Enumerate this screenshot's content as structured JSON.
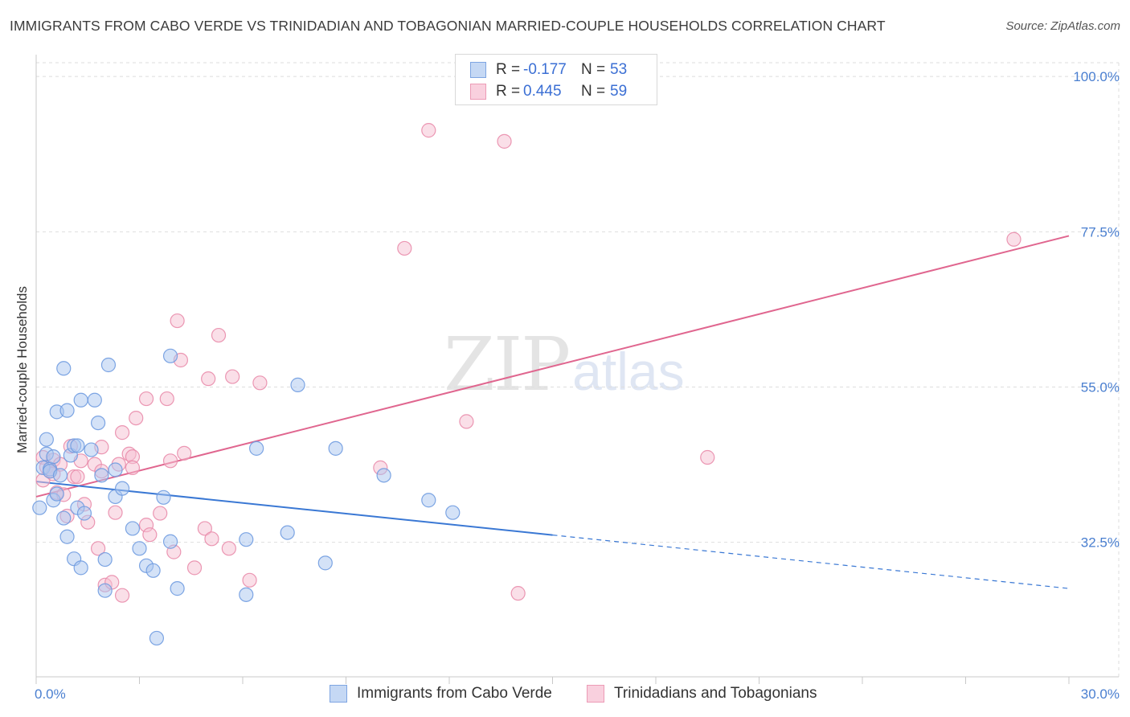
{
  "title": "IMMIGRANTS FROM CABO VERDE VS TRINIDADIAN AND TOBAGONIAN MARRIED-COUPLE HOUSEHOLDS CORRELATION CHART",
  "source": "Source: ZipAtlas.com",
  "watermark": {
    "zip": "ZIP",
    "atlas": "atlas"
  },
  "legend": {
    "rows": [
      {
        "r_label": "R =",
        "r_value": "-0.177",
        "n_label": "N =",
        "n_value": "53"
      },
      {
        "r_label": "R =",
        "r_value": "0.445",
        "n_label": "N =",
        "n_value": "59"
      }
    ]
  },
  "bottom_legend": [
    "Immigrants from Cabo Verde",
    "Trinidadians and Tobagonians"
  ],
  "colors": {
    "blue_fill": "#a9c6ef",
    "blue_stroke": "#6f9be0",
    "blue_line": "#3a78d4",
    "pink_fill": "#f6bfd2",
    "pink_stroke": "#e98cab",
    "pink_line": "#e0668f",
    "tick_label": "#4a7fd0",
    "grid": "#dedede"
  },
  "chart_data": {
    "type": "scatter",
    "title": "IMMIGRANTS FROM CABO VERDE VS TRINIDADIAN AND TOBAGONIAN MARRIED-COUPLE HOUSEHOLDS CORRELATION CHART",
    "xlabel": "",
    "ylabel": "Married-couple Households",
    "xlim": [
      0,
      30
    ],
    "ylim": [
      13,
      102
    ],
    "x_tick_labels": [
      "0.0%",
      "30.0%"
    ],
    "y_ticks": [
      32.5,
      55.0,
      77.5,
      100.0
    ],
    "y_tick_labels": [
      "32.5%",
      "55.0%",
      "77.5%",
      "100.0%"
    ],
    "grid": true,
    "series": [
      {
        "name": "Immigrants from Cabo Verde",
        "color": "blue",
        "points": [
          [
            0.1,
            37.5
          ],
          [
            0.2,
            43.3
          ],
          [
            0.3,
            45.3
          ],
          [
            0.3,
            47.4
          ],
          [
            0.4,
            43.1
          ],
          [
            0.4,
            42.8
          ],
          [
            0.5,
            38.6
          ],
          [
            0.5,
            44.9
          ],
          [
            0.6,
            39.5
          ],
          [
            0.6,
            51.4
          ],
          [
            0.7,
            42.2
          ],
          [
            0.8,
            57.7
          ],
          [
            0.8,
            36.0
          ],
          [
            0.9,
            33.3
          ],
          [
            0.9,
            51.6
          ],
          [
            1.0,
            45.1
          ],
          [
            1.1,
            46.5
          ],
          [
            1.1,
            30.1
          ],
          [
            1.2,
            37.5
          ],
          [
            1.2,
            46.5
          ],
          [
            1.3,
            28.8
          ],
          [
            1.3,
            53.1
          ],
          [
            1.4,
            36.7
          ],
          [
            1.6,
            45.9
          ],
          [
            1.7,
            53.1
          ],
          [
            1.8,
            49.8
          ],
          [
            1.9,
            42.2
          ],
          [
            2.0,
            25.5
          ],
          [
            2.0,
            30.0
          ],
          [
            2.1,
            58.2
          ],
          [
            2.3,
            39.1
          ],
          [
            2.3,
            43.0
          ],
          [
            2.5,
            40.3
          ],
          [
            2.8,
            34.5
          ],
          [
            3.0,
            31.6
          ],
          [
            3.2,
            29.1
          ],
          [
            3.4,
            28.4
          ],
          [
            3.5,
            18.6
          ],
          [
            3.7,
            39.0
          ],
          [
            3.9,
            59.5
          ],
          [
            3.9,
            32.6
          ],
          [
            4.1,
            25.8
          ],
          [
            6.1,
            24.9
          ],
          [
            6.1,
            32.9
          ],
          [
            6.4,
            46.1
          ],
          [
            7.3,
            33.9
          ],
          [
            7.6,
            55.3
          ],
          [
            8.4,
            29.5
          ],
          [
            8.7,
            46.1
          ],
          [
            10.1,
            42.2
          ],
          [
            11.4,
            38.6
          ],
          [
            12.1,
            36.8
          ]
        ]
      },
      {
        "name": "Trinidadians and Tobagonians",
        "color": "pink",
        "points": [
          [
            0.2,
            44.8
          ],
          [
            0.2,
            41.5
          ],
          [
            0.3,
            43.4
          ],
          [
            0.4,
            42.8
          ],
          [
            0.5,
            42.4
          ],
          [
            0.5,
            44.4
          ],
          [
            0.6,
            39.7
          ],
          [
            0.7,
            43.8
          ],
          [
            0.8,
            39.4
          ],
          [
            0.9,
            36.3
          ],
          [
            1.0,
            46.4
          ],
          [
            1.1,
            42.0
          ],
          [
            1.2,
            42.0
          ],
          [
            1.3,
            44.3
          ],
          [
            1.4,
            38.0
          ],
          [
            1.5,
            35.4
          ],
          [
            1.7,
            43.8
          ],
          [
            1.8,
            31.6
          ],
          [
            1.9,
            46.3
          ],
          [
            1.9,
            42.8
          ],
          [
            2.0,
            26.3
          ],
          [
            2.2,
            26.7
          ],
          [
            2.3,
            36.8
          ],
          [
            2.4,
            43.8
          ],
          [
            2.5,
            48.4
          ],
          [
            2.5,
            24.8
          ],
          [
            2.7,
            45.3
          ],
          [
            2.8,
            44.9
          ],
          [
            2.8,
            43.3
          ],
          [
            2.9,
            50.5
          ],
          [
            3.2,
            35.0
          ],
          [
            3.2,
            53.3
          ],
          [
            3.3,
            33.6
          ],
          [
            3.6,
            36.7
          ],
          [
            3.8,
            53.3
          ],
          [
            3.9,
            44.3
          ],
          [
            4.0,
            31.1
          ],
          [
            4.1,
            64.6
          ],
          [
            4.2,
            58.9
          ],
          [
            4.3,
            45.4
          ],
          [
            4.6,
            28.8
          ],
          [
            4.9,
            34.5
          ],
          [
            5.0,
            56.2
          ],
          [
            5.1,
            33.0
          ],
          [
            5.3,
            62.5
          ],
          [
            5.6,
            31.6
          ],
          [
            5.7,
            56.5
          ],
          [
            6.2,
            27.0
          ],
          [
            6.5,
            55.6
          ],
          [
            10.0,
            43.3
          ],
          [
            10.7,
            75.1
          ],
          [
            11.4,
            92.2
          ],
          [
            12.5,
            50.0
          ],
          [
            13.6,
            90.6
          ],
          [
            14.0,
            25.1
          ],
          [
            19.5,
            44.8
          ],
          [
            28.4,
            76.4
          ]
        ]
      }
    ],
    "trendlines": [
      {
        "series": "Immigrants from Cabo Verde",
        "x_start": 0,
        "y_start": 41.3,
        "x_solid_end": 15,
        "x_end": 30,
        "y_end": 25.8
      },
      {
        "series": "Trinidadians and Tobagonians",
        "x_start": 0,
        "y_start": 39.1,
        "x_end": 30,
        "y_end": 76.9
      }
    ]
  }
}
